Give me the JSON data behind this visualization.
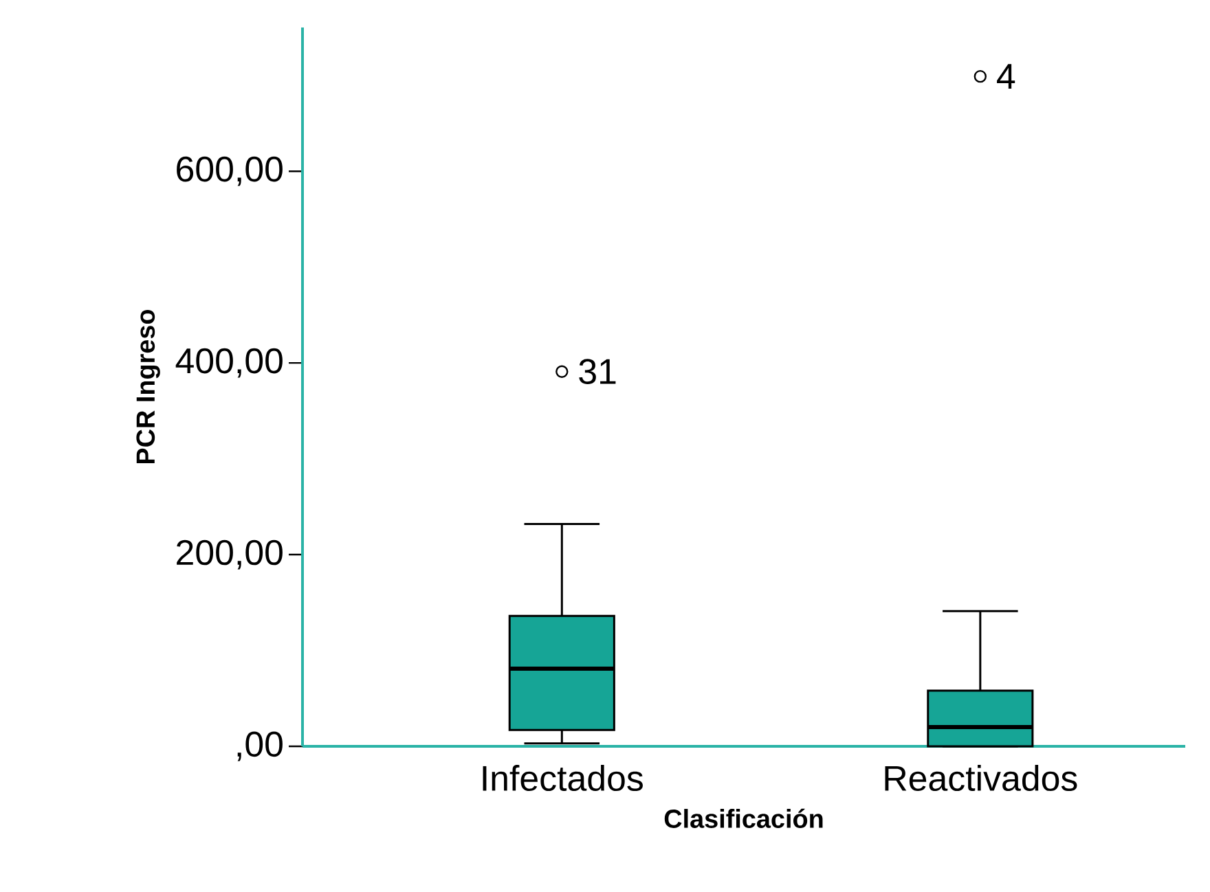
{
  "chart_data": {
    "type": "box",
    "xlabel": "Clasificación",
    "ylabel": "PCR Ingreso",
    "categories": [
      "Infectados",
      "Reactivados"
    ],
    "boxes": [
      {
        "low": 3,
        "q1": 17,
        "median": 81,
        "q3": 136,
        "high": 232,
        "outliers": [
          391
        ]
      },
      {
        "low": 0,
        "q1": 0,
        "median": 20,
        "q3": 58,
        "high": 141,
        "outliers": [
          699
        ]
      }
    ],
    "color": "#16a596",
    "grid": false,
    "ylim": [
      0,
      750
    ],
    "yticks": [
      {
        "value": 0,
        "label": ",00"
      },
      {
        "value": 200,
        "label": "200,00"
      },
      {
        "value": 400,
        "label": "400,00"
      },
      {
        "value": 600,
        "label": "600,00"
      }
    ],
    "annotations": [
      "31",
      "4"
    ]
  }
}
